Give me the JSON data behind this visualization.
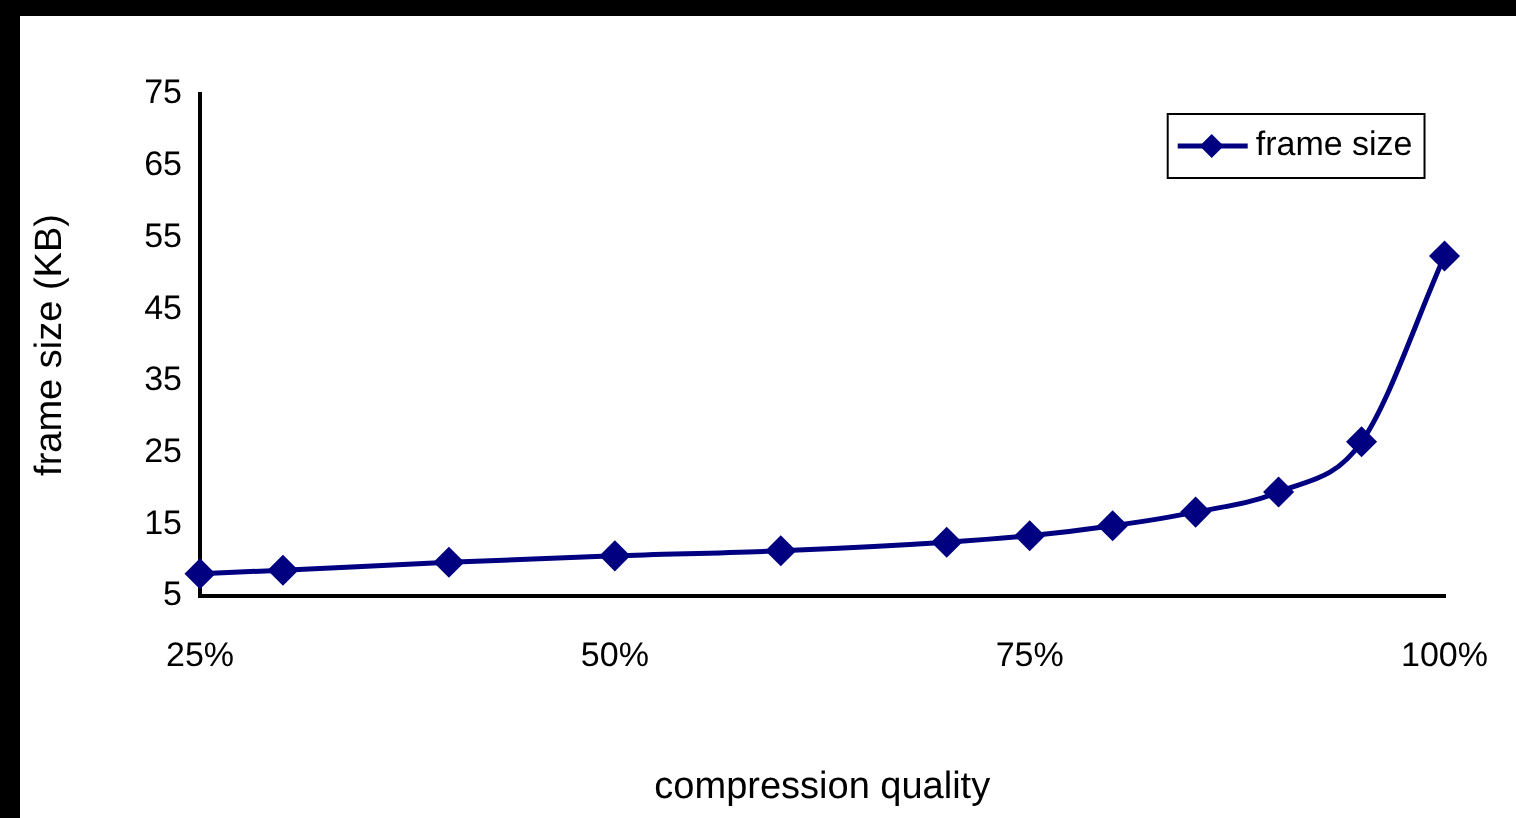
{
  "chart_data": {
    "type": "line",
    "xlabel": "compression quality",
    "ylabel": "frame size (KB)",
    "x": [
      25,
      30,
      40,
      50,
      60,
      70,
      75,
      80,
      85,
      90,
      95,
      100
    ],
    "series": [
      {
        "name": "frame size",
        "color": "#000080",
        "values": [
          8.1,
          8.6,
          9.7,
          10.6,
          11.3,
          12.5,
          13.4,
          14.8,
          16.7,
          19.5,
          26.5,
          52.4
        ]
      }
    ],
    "xlim": [
      25,
      100
    ],
    "xticks": [
      {
        "value": 25,
        "label": "25%"
      },
      {
        "value": 50,
        "label": "50%"
      },
      {
        "value": 75,
        "label": "75%"
      },
      {
        "value": 100,
        "label": "100%"
      }
    ],
    "ylim": [
      5,
      75
    ],
    "yticks": [
      5,
      15,
      25,
      35,
      45,
      55,
      65,
      75
    ],
    "grid": false,
    "legend": "top right",
    "marker": "diamond",
    "line_style": "solid"
  }
}
